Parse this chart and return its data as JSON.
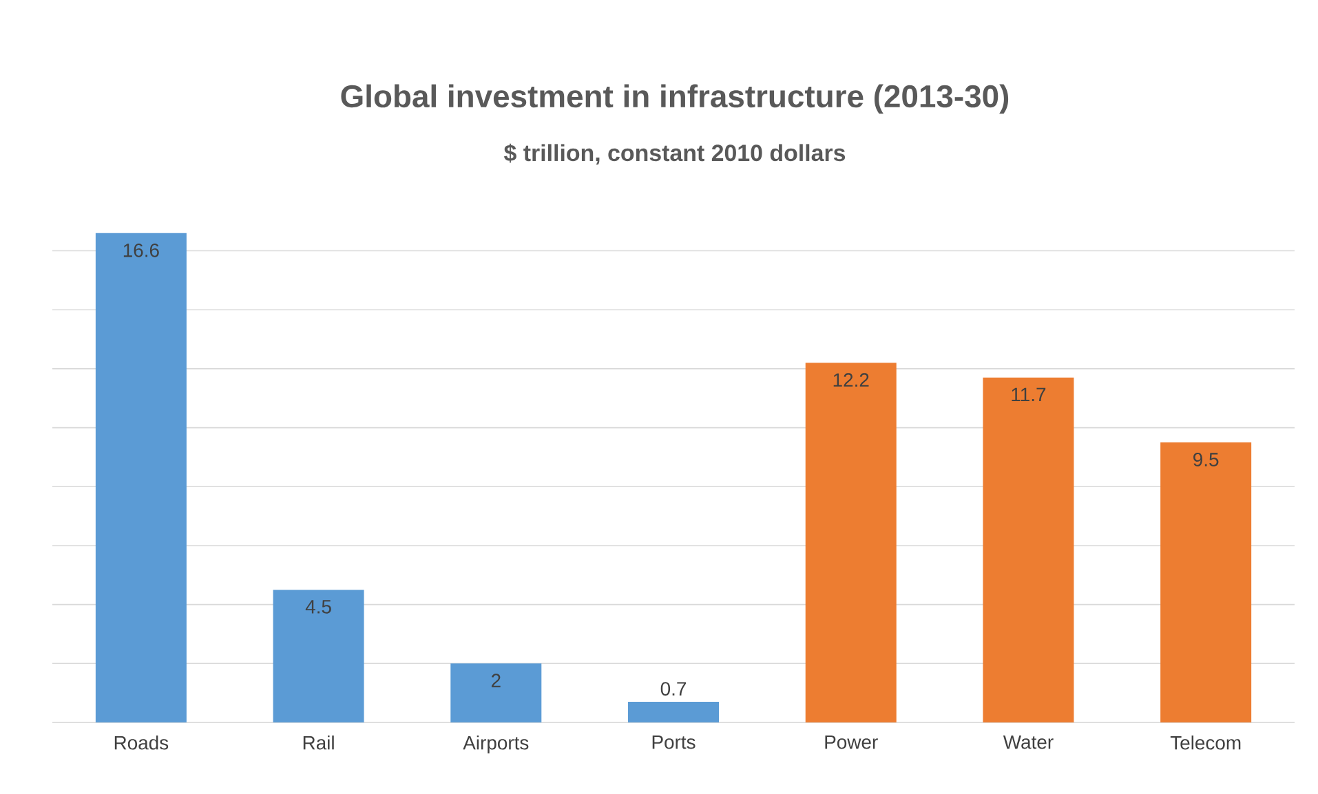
{
  "chart_data": {
    "type": "bar",
    "title": "Global investment in infrastructure (2013-30)",
    "subtitle": "$ trillion, constant 2010 dollars",
    "categories": [
      "Roads",
      "Rail",
      "Airports",
      "Ports",
      "Power",
      "Water",
      "Telecom"
    ],
    "values": [
      16.6,
      4.5,
      2,
      0.7,
      12.2,
      11.7,
      9.5
    ],
    "colors": [
      "#5b9bd5",
      "#5b9bd5",
      "#5b9bd5",
      "#5b9bd5",
      "#ed7d31",
      "#ed7d31",
      "#ed7d31"
    ],
    "tick_labels": "x",
    "grid": "y",
    "data_labels": true
  }
}
